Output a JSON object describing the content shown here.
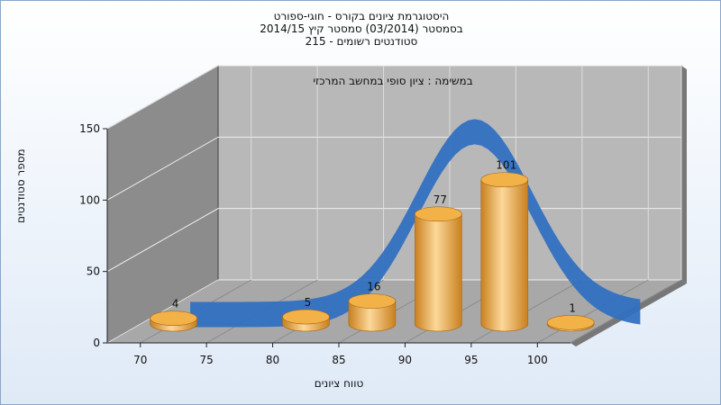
{
  "chart_data": {
    "type": "bar",
    "title_lines": [
      "היסטוגרמת ציונים בקורס - חוגי-ספורט",
      "בסמסטר  (03/2014)  סמסטר קיץ 2014/15",
      "סטודנטים רשומים - 215"
    ],
    "subtitle": "במשימה : ציון סופי במחשב המרכזי",
    "xlabel": "טווח ציונים",
    "ylabel": "מספר סטודנטים",
    "x_ticks": [
      70,
      75,
      80,
      85,
      90,
      95,
      100
    ],
    "y_ticks": [
      0,
      50,
      100,
      150
    ],
    "ylim": [
      0,
      150
    ],
    "categories": [
      70,
      80,
      85,
      90,
      95,
      100
    ],
    "values": [
      4,
      5,
      16,
      77,
      101,
      1
    ],
    "curve": "normal-distribution-ribbon",
    "colors": {
      "bar": "#e8a33a",
      "curve": "#3170c0",
      "wall": "#8c8c8c",
      "back_wall": "#b8b8b8",
      "floor": "#a8a8a8"
    }
  }
}
